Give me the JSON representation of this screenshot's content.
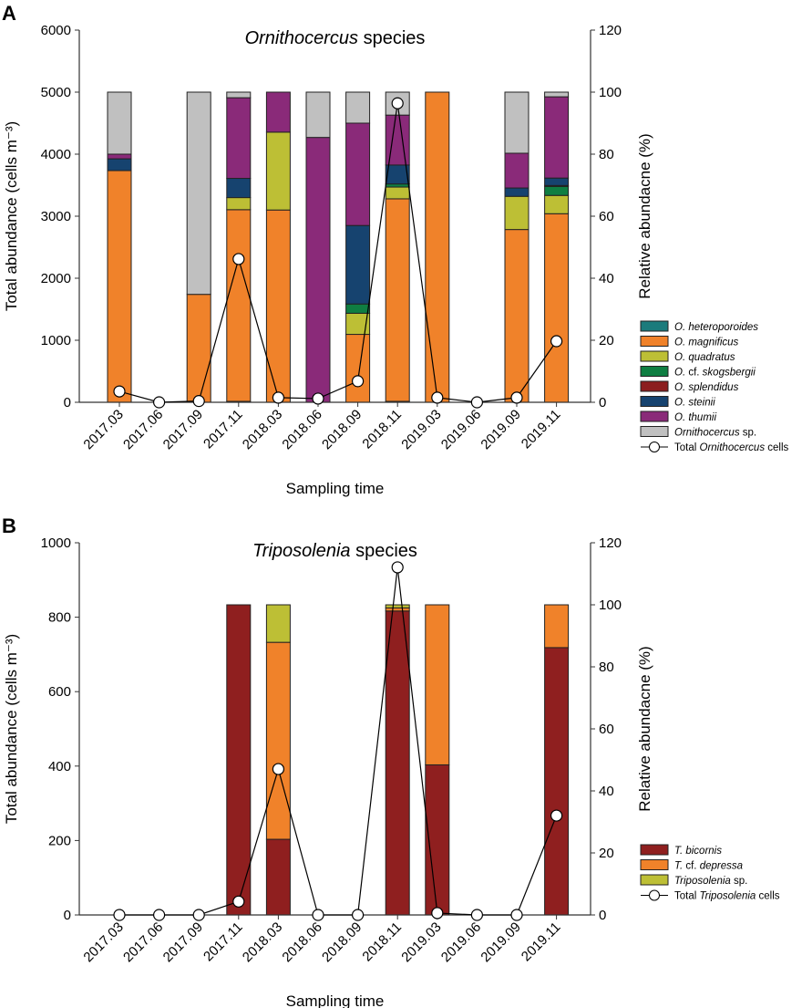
{
  "chart_data": [
    {
      "type": "bar",
      "stacked": true,
      "panel_label": "A",
      "title_italic": "Ornithocercus",
      "title_rest": " species",
      "xlabel": "Sampling time",
      "ylabel": "Total abundance (cells m⁻³)",
      "y2label": "Relative abundacne (%)",
      "ylim": [
        0,
        6000
      ],
      "y2lim": [
        0,
        120
      ],
      "yticks": [
        "0",
        "1000",
        "2000",
        "3000",
        "4000",
        "5000",
        "6000"
      ],
      "y2ticks": [
        "0",
        "20",
        "40",
        "60",
        "80",
        "100",
        "120"
      ],
      "categories": [
        "2017.03",
        "2017.06",
        "2017.09",
        "2017.11",
        "2018.03",
        "2018.06",
        "2018.09",
        "2018.11",
        "2019.03",
        "2019.06",
        "2019.09",
        "2019.11"
      ],
      "series": [
        {
          "name": "O. heteroporoides",
          "italic": "O. heteroporoides",
          "rest": "",
          "color": "#1b7b7c",
          "values": [
            0,
            0,
            0,
            0.3,
            0,
            0,
            0,
            0.3,
            0,
            0,
            0,
            0
          ]
        },
        {
          "name": "O. magnificus",
          "italic": "O. magnificus",
          "rest": "",
          "color": "#f0822a",
          "values": [
            74.7,
            0,
            34.8,
            61.8,
            62,
            0,
            21.9,
            65.3,
            100,
            0,
            55.7,
            60.8
          ]
        },
        {
          "name": "O. quadratus",
          "italic": "O. quadratus",
          "rest": "",
          "color": "#bdbf35",
          "values": [
            0,
            0,
            0,
            3.9,
            25.1,
            0,
            6.8,
            3.8,
            0,
            0,
            10.7,
            5.9
          ]
        },
        {
          "name": "O. cf. skogsbergii",
          "italic": "O.",
          "rest": " cf. ",
          "italic2": "skogsbergii",
          "color": "#0f7e42",
          "values": [
            0,
            0,
            0,
            0,
            0,
            0,
            3,
            1,
            0,
            0,
            0,
            2.9
          ]
        },
        {
          "name": "O. splendidus",
          "italic": "O. splendidus",
          "rest": "",
          "color": "#8c1e1f",
          "values": [
            0,
            0,
            0,
            0,
            0,
            0,
            0,
            0,
            0,
            0,
            0,
            0.3
          ]
        },
        {
          "name": "O. steinii",
          "italic": "O. steinii",
          "rest": "",
          "color": "#16436f",
          "values": [
            3.8,
            0,
            0,
            6.2,
            0,
            0,
            25.3,
            6.1,
            0,
            0,
            2.7,
            2.4
          ]
        },
        {
          "name": "O. thumii",
          "italic": "O. thumii",
          "rest": "",
          "color": "#8a2a79",
          "values": [
            1.5,
            0,
            0,
            26,
            12.9,
            85.4,
            33,
            16.1,
            0,
            0,
            11.2,
            26.2
          ]
        },
        {
          "name": "Ornithocercus sp.",
          "italic": "Ornithocercus",
          "rest": " sp.",
          "color": "#c0c0c0",
          "values": [
            20,
            0,
            65.2,
            1.8,
            0,
            14.6,
            10,
            7.4,
            0,
            0,
            19.7,
            1.5
          ]
        }
      ],
      "line": {
        "name": "Total Ornithocercus cells",
        "label_pre": "Total ",
        "label_italic": "Ornithocercus",
        "label_post": " cells",
        "values": [
          175,
          0,
          20,
          2310,
          75,
          60,
          340,
          4820,
          75,
          0,
          75,
          985
        ]
      },
      "legend_position": "right"
    },
    {
      "type": "bar",
      "stacked": true,
      "panel_label": "B",
      "title_italic": "Triposolenia",
      "title_rest": " species",
      "xlabel": "Sampling time",
      "ylabel": "Total abundance (cells m⁻³)",
      "y2label": "Relative abundacne (%)",
      "ylim": [
        0,
        1000
      ],
      "y2lim": [
        0,
        120
      ],
      "yticks": [
        "0",
        "200",
        "400",
        "600",
        "800",
        "1000"
      ],
      "y2ticks": [
        "0",
        "20",
        "40",
        "60",
        "80",
        "100",
        "120"
      ],
      "categories": [
        "2017.03",
        "2017.06",
        "2017.09",
        "2017.11",
        "2018.03",
        "2018.06",
        "2018.09",
        "2018.11",
        "2019.03",
        "2019.06",
        "2019.09",
        "2019.11"
      ],
      "series": [
        {
          "name": "T. bicornis",
          "italic": "T. bicornis",
          "rest": "",
          "color": "#8f1f1f",
          "values": [
            0,
            0,
            0,
            100,
            24.4,
            0,
            0,
            98,
            48.4,
            0,
            0,
            86.2
          ]
        },
        {
          "name": "T. cf. depressa",
          "italic": "T.",
          "rest": " cf. ",
          "italic2": "depressa",
          "color": "#f0822a",
          "values": [
            0,
            0,
            0,
            0,
            63.5,
            0,
            0,
            1,
            51.6,
            0,
            0,
            13.8
          ]
        },
        {
          "name": "Triposolenia sp.",
          "italic": "Triposolenia",
          "rest": " sp.",
          "color": "#bdbf35",
          "values": [
            0,
            0,
            0,
            0,
            12.1,
            0,
            0,
            1,
            0,
            0,
            0,
            0
          ]
        }
      ],
      "line": {
        "name": "Total Triposolenia cells",
        "label_pre": "Total ",
        "label_italic": "Triposolenia",
        "label_post": " cells",
        "values": [
          0,
          0,
          0,
          36,
          392,
          0,
          0,
          934,
          5,
          0,
          0,
          267
        ]
      },
      "legend_position": "right"
    }
  ]
}
